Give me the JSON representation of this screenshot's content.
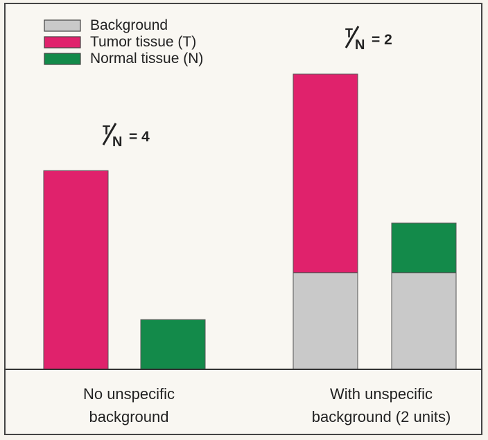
{
  "chart_data": {
    "type": "bar",
    "stacked": true,
    "title": "",
    "xlabel": "",
    "ylabel": "",
    "ylim": [
      0,
      11
    ],
    "grid": false,
    "legend_position": "top-left",
    "legend": [
      {
        "key": "background",
        "label": "Background",
        "color": "#c9c9c9"
      },
      {
        "key": "tumor",
        "label": "Tumor tissue (T)",
        "color": "#e0226c"
      },
      {
        "key": "normal",
        "label": "Normal tissue (N)",
        "color": "#138a4a"
      }
    ],
    "groups": [
      {
        "label_lines": [
          "No unspecific",
          "background"
        ],
        "ratio": {
          "numerator": "T",
          "denominator": "N",
          "value": "= 4"
        },
        "bars": [
          {
            "segments": [
              {
                "series": "tumor",
                "value": 7.2
              }
            ]
          },
          {
            "segments": [
              {
                "series": "normal",
                "value": 1.8
              }
            ]
          }
        ]
      },
      {
        "label_lines": [
          "With unspecific",
          "background (2 units)"
        ],
        "ratio": {
          "numerator": "T",
          "denominator": "N",
          "value": "= 2"
        },
        "bars": [
          {
            "segments": [
              {
                "series": "background",
                "value": 3.5
              },
              {
                "series": "tumor",
                "value": 7.2
              }
            ]
          },
          {
            "segments": [
              {
                "series": "background",
                "value": 3.5
              },
              {
                "series": "normal",
                "value": 1.8
              }
            ]
          }
        ]
      }
    ]
  }
}
